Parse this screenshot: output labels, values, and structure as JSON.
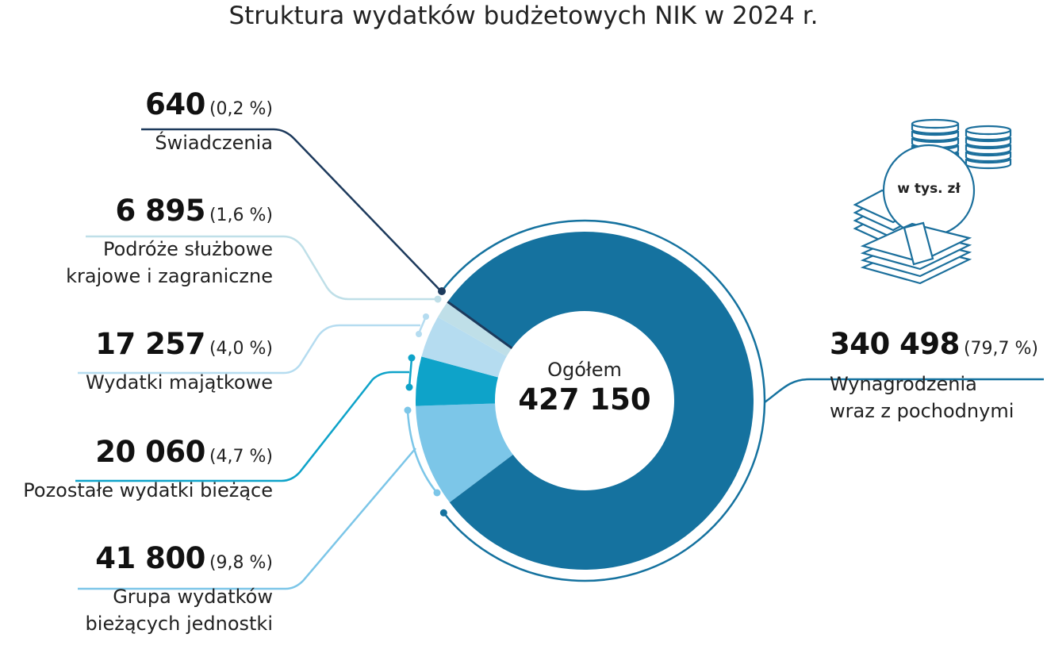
{
  "title": "Struktura wydatków budżetowych NIK w 2024 r.",
  "unit_badge": "w tys. zł",
  "center": {
    "caption": "Ogółem",
    "total": "427 150"
  },
  "labels": [
    {
      "value": "640",
      "pct": "(0,2 %)",
      "name_lines": [
        "Świadczenia"
      ]
    },
    {
      "value": "6 895",
      "pct": "(1,6 %)",
      "name_lines": [
        "Podróże służbowe",
        "krajowe i zagraniczne"
      ]
    },
    {
      "value": "17 257",
      "pct": "(4,0 %)",
      "name_lines": [
        "Wydatki majątkowe"
      ]
    },
    {
      "value": "20 060",
      "pct": "(4,7 %)",
      "name_lines": [
        "Pozostałe wydatki bieżące"
      ]
    },
    {
      "value": "41 800",
      "pct": "(9,8 %)",
      "name_lines": [
        "Grupa wydatków",
        "bieżących jednostki"
      ]
    },
    {
      "value": "340 498",
      "pct": "(79,7 %)",
      "name_lines": [
        "Wynagrodzenia",
        "wraz z pochodnymi"
      ]
    }
  ],
  "colors": {
    "swiadczenia": "#1d3a5c",
    "podroze": "#bfdfe8",
    "majatkowe": "#b5dcf0",
    "pozostale": "#0ea3c9",
    "grupa": "#7cc6e8",
    "wynagrodzenia": "#15729f"
  },
  "chart_data": {
    "type": "pie",
    "subtype": "donut",
    "title": "Struktura wydatków budżetowych NIK w 2024 r.",
    "unit": "w tys. zł",
    "total": 427150,
    "center_label": "Ogółem",
    "categories": [
      "Wynagrodzenia wraz z pochodnymi",
      "Świadczenia",
      "Podróże służbowe krajowe i zagraniczne",
      "Wydatki majątkowe",
      "Pozostałe wydatki bieżące",
      "Grupa wydatków bieżących jednostki"
    ],
    "values": [
      340498,
      640,
      6895,
      17257,
      20060,
      41800
    ],
    "percentages": [
      79.7,
      0.2,
      1.6,
      4.0,
      4.7,
      9.8
    ],
    "colors": [
      "#15729f",
      "#1d3a5c",
      "#bfdfe8",
      "#b5dcf0",
      "#0ea3c9",
      "#7cc6e8"
    ],
    "legend": "callout labels (no legend box)"
  }
}
